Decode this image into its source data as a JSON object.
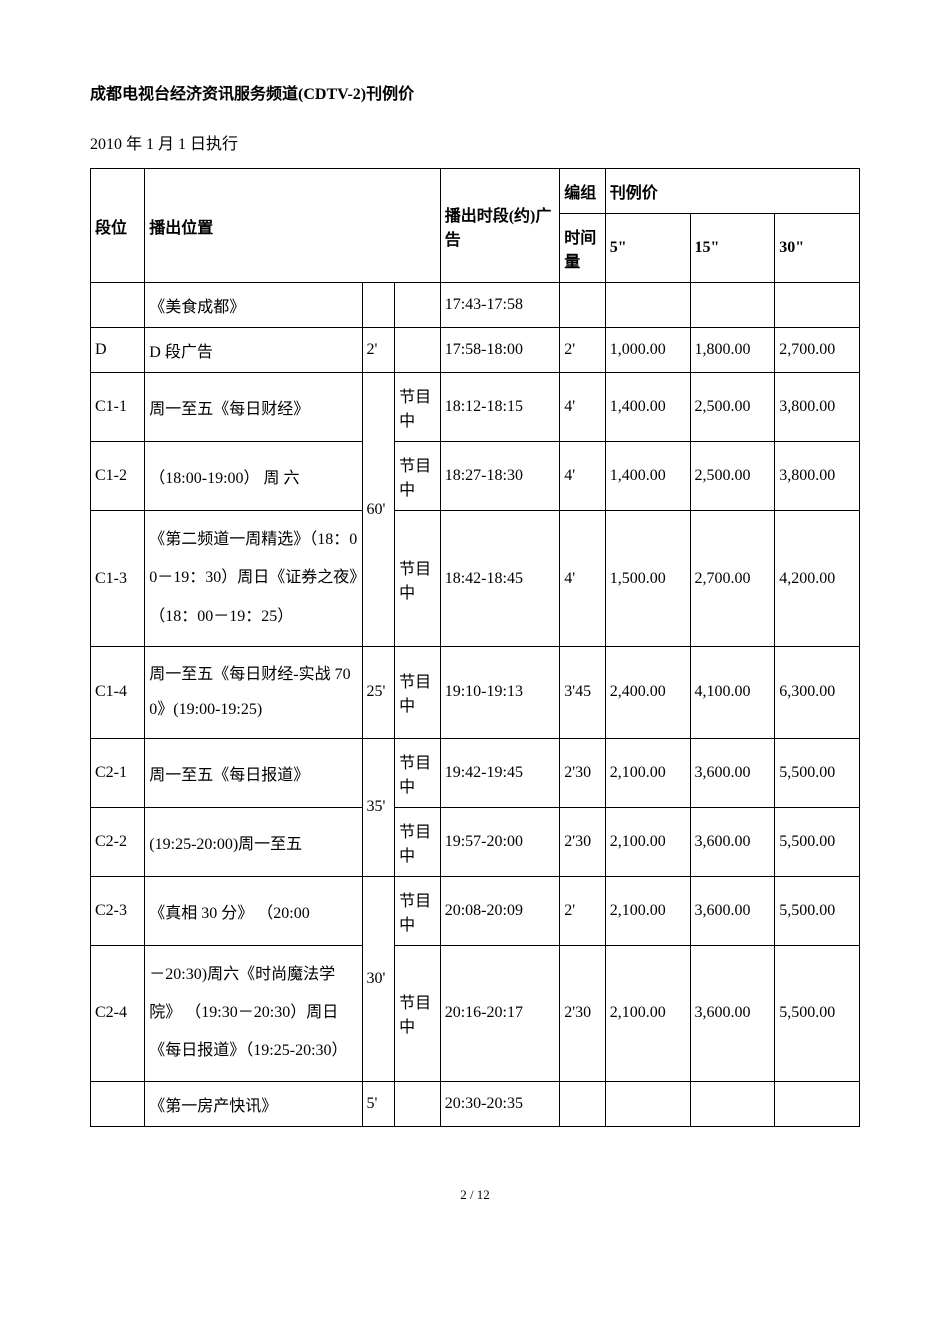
{
  "doc": {
    "title": "成都电视台经济资讯服务频道(CDTV-2)刊例价",
    "effective": "2010 年 1 月 1 日执行",
    "page": "2 / 12"
  },
  "headers": {
    "segment": "段位",
    "position": "播出位置",
    "time_slot": "播出时段(约)",
    "group": "编组",
    "ad": "广告",
    "ad_len": "时间量",
    "rate": "刊例价",
    "p5": "5\"",
    "p15": "15\"",
    "p30": "30\""
  },
  "rows": {
    "r0": {
      "prog": "《美食成都》",
      "time": "17:43-17:58"
    },
    "rD": {
      "seg": "D",
      "prog": "D 段广告",
      "dur": "2'",
      "time": "17:58-18:00",
      "adlen": "2'",
      "p5": "1,000.00",
      "p15": "1,800.00",
      "p30": "2,700.00"
    },
    "rC1_1": {
      "seg": "C1-1",
      "prog": "周一至五《每日财经》",
      "mid": "节目中",
      "time": "18:12-18:15",
      "adlen": "4'",
      "p5": "1,400.00",
      "p15": "2,500.00",
      "p30": "3,800.00"
    },
    "rC1_2": {
      "seg": "C1-2",
      "prog": "（18:00-19:00） 周 六",
      "mid": "节目中",
      "time": "18:27-18:30",
      "adlen": "4'",
      "p5": "1,400.00",
      "p15": "2,500.00",
      "p30": "3,800.00"
    },
    "rC1_3": {
      "seg": "C1-3",
      "prog": "《第二频道一周精选》（18：00－19：30）周日《证券之夜》（18：00－19：25）",
      "dur": "60'",
      "mid": "节目中",
      "time": "18:42-18:45",
      "adlen": "4'",
      "p5": "1,500.00",
      "p15": "2,700.00",
      "p30": "4,200.00"
    },
    "rC1_4": {
      "seg": "C1-4",
      "prog": "周一至五《每日财经-实战 700》(19:00-19:25)",
      "dur": "25'",
      "mid": "节目中",
      "time": "19:10-19:13",
      "adlen": "3'45",
      "p5": "2,400.00",
      "p15": "4,100.00",
      "p30": "6,300.00"
    },
    "rC2_1": {
      "seg": "C2-1",
      "prog": "周一至五《每日报道》",
      "mid": "节目中",
      "time": "19:42-19:45",
      "adlen": "2'30",
      "p5": "2,100.00",
      "p15": "3,600.00",
      "p30": "5,500.00"
    },
    "rC2_2": {
      "seg": "C2-2",
      "prog": "(19:25-20:00)周一至五",
      "dur35": "35'",
      "mid": "节目中",
      "time": "19:57-20:00",
      "adlen": "2'30",
      "p5": "2,100.00",
      "p15": "3,600.00",
      "p30": "5,500.00"
    },
    "rC2_3": {
      "seg": "C2-3",
      "prog": "《真相 30 分》 （20:00",
      "mid": "节目中",
      "time": "20:08-20:09",
      "adlen": "2'",
      "p5": "2,100.00",
      "p15": "3,600.00",
      "p30": "5,500.00"
    },
    "rC2_4": {
      "seg": "C2-4",
      "prog": "－20:30)周六《时尚魔法学院》 （19:30－20:30）周日《每日报道》（19:25-20:30）",
      "dur": "30'",
      "mid": "节目中",
      "time": "20:16-20:17",
      "adlen": "2'30",
      "p5": "2,100.00",
      "p15": "3,600.00",
      "p30": "5,500.00"
    },
    "rLast": {
      "prog": "《第一房产快讯》",
      "dur": "5'",
      "time": "20:30-20:35"
    }
  },
  "style": {
    "title_fontsize": 16,
    "body_fontsize": 14,
    "border_color": "#000000",
    "background_color": "#ffffff",
    "text_color": "#000000"
  }
}
